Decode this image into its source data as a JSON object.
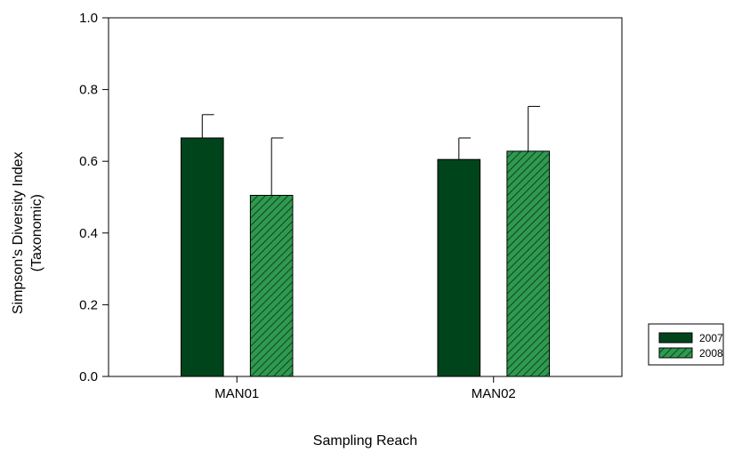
{
  "chart_data": {
    "type": "bar",
    "categories": [
      "MAN01",
      "MAN02"
    ],
    "series": [
      {
        "name": "2007",
        "values": [
          0.665,
          0.605
        ],
        "errors": [
          0.065,
          0.06
        ],
        "color": "#00441b",
        "pattern": "solid"
      },
      {
        "name": "2008",
        "values": [
          0.505,
          0.628
        ],
        "errors": [
          0.16,
          0.125
        ],
        "color": "#2e9a4f",
        "pattern": "hatched"
      }
    ],
    "title": "",
    "xlabel": "Sampling Reach",
    "ylabel_lines": [
      "Simpson's Diversity Index",
      "(Taxonomic)"
    ],
    "ylim": [
      0,
      1.0
    ],
    "yticks": [
      "0.0",
      "0.2",
      "0.4",
      "0.6",
      "0.8",
      "1.0"
    ],
    "grid": false,
    "legend_position": "bottom-right, outside plot"
  }
}
